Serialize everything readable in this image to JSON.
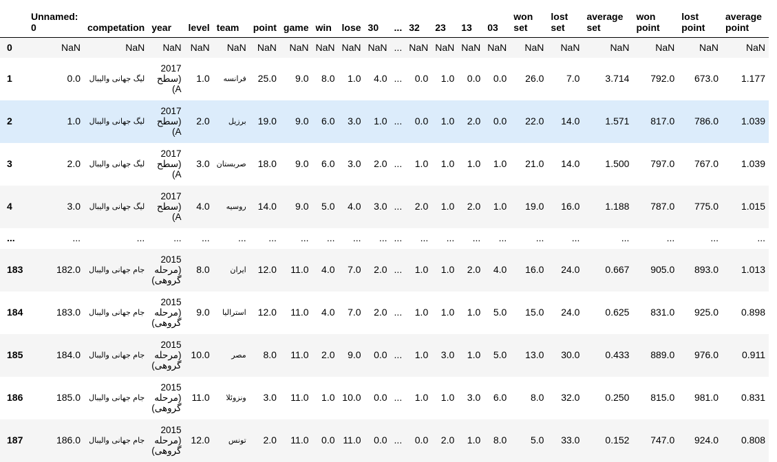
{
  "columns": [
    "",
    "Unnamed: 0",
    "competation",
    "year",
    "level",
    "team",
    "point",
    "game",
    "win",
    "lose",
    "30",
    "...",
    "32",
    "23",
    "13",
    "03",
    "won set",
    "lost set",
    "average set",
    "won point",
    "lost point",
    "average point"
  ],
  "rows": [
    {
      "index": "0",
      "cells": [
        "NaN",
        "NaN",
        "NaN",
        "NaN",
        "NaN",
        "NaN",
        "NaN",
        "NaN",
        "NaN",
        "NaN",
        "...",
        "NaN",
        "NaN",
        "NaN",
        "NaN",
        "NaN",
        "NaN",
        "NaN",
        "NaN",
        "NaN",
        "NaN"
      ],
      "year_lines": [
        "NaN"
      ]
    },
    {
      "index": "1",
      "cells": [
        "0.0",
        "لیگ جهانی والیبال",
        "",
        "1.0",
        "فرانسه",
        "25.0",
        "9.0",
        "8.0",
        "1.0",
        "4.0",
        "...",
        "0.0",
        "1.0",
        "0.0",
        "0.0",
        "26.0",
        "7.0",
        "3.714",
        "792.0",
        "673.0",
        "1.177"
      ],
      "year_lines": [
        "2017",
        "سطح)",
        "(A"
      ]
    },
    {
      "index": "2",
      "cells": [
        "1.0",
        "لیگ جهانی والیبال",
        "",
        "2.0",
        "برزیل",
        "19.0",
        "9.0",
        "6.0",
        "3.0",
        "1.0",
        "...",
        "0.0",
        "1.0",
        "2.0",
        "0.0",
        "22.0",
        "14.0",
        "1.571",
        "817.0",
        "786.0",
        "1.039"
      ],
      "year_lines": [
        "2017",
        "سطح)",
        "(A"
      ]
    },
    {
      "index": "3",
      "cells": [
        "2.0",
        "لیگ جهانی والیبال",
        "",
        "3.0",
        "صربستان",
        "18.0",
        "9.0",
        "6.0",
        "3.0",
        "2.0",
        "...",
        "1.0",
        "1.0",
        "1.0",
        "1.0",
        "21.0",
        "14.0",
        "1.500",
        "797.0",
        "767.0",
        "1.039"
      ],
      "year_lines": [
        "2017",
        "سطح)",
        "(A"
      ]
    },
    {
      "index": "4",
      "cells": [
        "3.0",
        "لیگ جهانی والیبال",
        "",
        "4.0",
        "روسیه",
        "14.0",
        "9.0",
        "5.0",
        "4.0",
        "3.0",
        "...",
        "2.0",
        "1.0",
        "2.0",
        "1.0",
        "19.0",
        "16.0",
        "1.188",
        "787.0",
        "775.0",
        "1.015"
      ],
      "year_lines": [
        "2017",
        "سطح)",
        "(A"
      ]
    },
    {
      "index": "...",
      "cells": [
        "...",
        "...",
        "...",
        "...",
        "...",
        "...",
        "...",
        "...",
        "...",
        "...",
        "...",
        "...",
        "...",
        "...",
        "...",
        "...",
        "...",
        "...",
        "...",
        "...",
        "..."
      ],
      "year_lines": [
        "..."
      ]
    },
    {
      "index": "183",
      "cells": [
        "182.0",
        "جام جهانی والیبال",
        "",
        "8.0",
        "ایران",
        "12.0",
        "11.0",
        "4.0",
        "7.0",
        "2.0",
        "...",
        "1.0",
        "1.0",
        "2.0",
        "4.0",
        "16.0",
        "24.0",
        "0.667",
        "905.0",
        "893.0",
        "1.013"
      ],
      "year_lines": [
        "2015",
        "مرحله)",
        "(گروهی"
      ]
    },
    {
      "index": "184",
      "cells": [
        "183.0",
        "جام جهانی والیبال",
        "",
        "9.0",
        "استرالیا",
        "12.0",
        "11.0",
        "4.0",
        "7.0",
        "2.0",
        "...",
        "1.0",
        "1.0",
        "1.0",
        "5.0",
        "15.0",
        "24.0",
        "0.625",
        "831.0",
        "925.0",
        "0.898"
      ],
      "year_lines": [
        "2015",
        "مرحله)",
        "(گروهی"
      ]
    },
    {
      "index": "185",
      "cells": [
        "184.0",
        "جام جهانی والیبال",
        "",
        "10.0",
        "مصر",
        "8.0",
        "11.0",
        "2.0",
        "9.0",
        "0.0",
        "...",
        "1.0",
        "3.0",
        "1.0",
        "5.0",
        "13.0",
        "30.0",
        "0.433",
        "889.0",
        "976.0",
        "0.911"
      ],
      "year_lines": [
        "2015",
        "مرحله)",
        "(گروهی"
      ]
    },
    {
      "index": "186",
      "cells": [
        "185.0",
        "جام جهانی والیبال",
        "",
        "11.0",
        "ونزوئلا",
        "3.0",
        "11.0",
        "1.0",
        "10.0",
        "0.0",
        "...",
        "1.0",
        "1.0",
        "3.0",
        "6.0",
        "8.0",
        "32.0",
        "0.250",
        "815.0",
        "981.0",
        "0.831"
      ],
      "year_lines": [
        "2015",
        "مرحله)",
        "(گروهی"
      ]
    },
    {
      "index": "187",
      "cells": [
        "186.0",
        "جام جهانی والیبال",
        "",
        "12.0",
        "تونس",
        "2.0",
        "11.0",
        "0.0",
        "11.0",
        "0.0",
        "...",
        "0.0",
        "2.0",
        "1.0",
        "8.0",
        "5.0",
        "33.0",
        "0.152",
        "747.0",
        "924.0",
        "0.808"
      ],
      "year_lines": [
        "2015",
        "مرحله)",
        "(گروهی"
      ]
    }
  ]
}
